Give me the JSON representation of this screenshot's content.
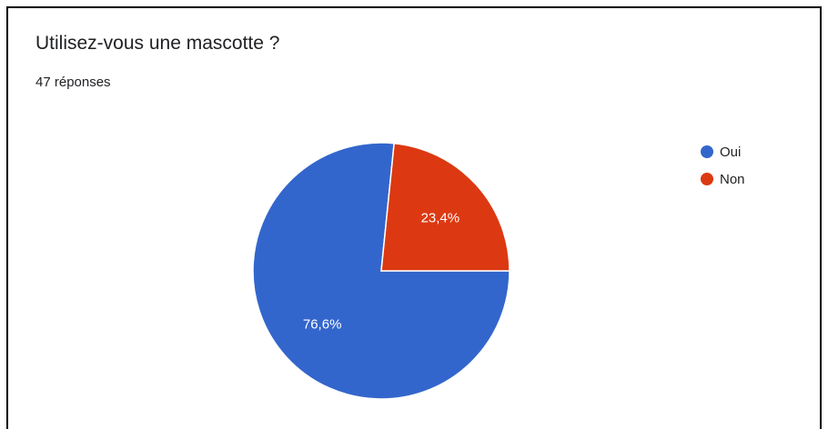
{
  "header": {
    "title": "Utilisez-vous une mascotte ?",
    "response_count": "47 réponses"
  },
  "chart_data": {
    "type": "pie",
    "title": "Utilisez-vous une mascotte ?",
    "categories": [
      "Oui",
      "Non"
    ],
    "values": [
      76.6,
      23.4
    ],
    "labels": [
      "76,6%",
      "23,4%"
    ],
    "colors": [
      "#3366cc",
      "#dc3912"
    ],
    "legend_position": "right"
  }
}
